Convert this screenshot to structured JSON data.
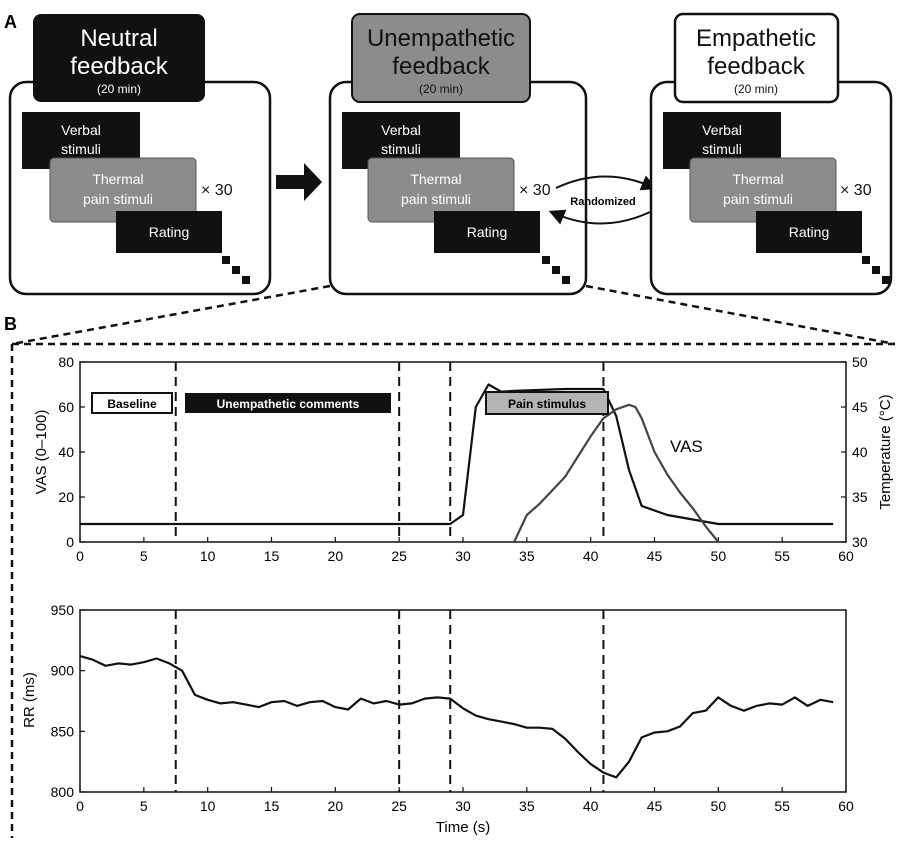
{
  "panel_a": {
    "label": "A",
    "blocks": [
      {
        "title_line1": "Neutral",
        "title_line2": "feedback",
        "duration": "(20 min)",
        "style": "black"
      },
      {
        "title_line1": "Unempathetic",
        "title_line2": "feedback",
        "duration": "(20 min)",
        "style": "gray"
      },
      {
        "title_line1": "Empathetic",
        "title_line2": "feedback",
        "duration": "(20 min)",
        "style": "white"
      }
    ],
    "verbal_line1": "Verbal",
    "verbal_line2": "stimuli",
    "thermal_line1": "Thermal",
    "thermal_line2": "pain stimuli",
    "repeat": "× 30",
    "rating": "Rating",
    "randomized": "Randomized"
  },
  "panel_b": {
    "label": "B",
    "phase_labels": {
      "baseline": "Baseline",
      "comments": "Unempathetic comments",
      "pain": "Pain stimulus"
    },
    "vas_label": "VAS"
  },
  "colors": {
    "black": "#111111",
    "gray": "#8c8c8c",
    "light_gray": "#b4b4b4",
    "white": "#ffffff"
  },
  "chart_data": [
    {
      "type": "line",
      "ylabel": "VAS (0–100)",
      "y2label": "Temperature (°C)",
      "xlim": [
        0,
        60
      ],
      "ylim": [
        0,
        80
      ],
      "y2lim": [
        30,
        50
      ],
      "xticks": [
        "0",
        "5",
        "10",
        "15",
        "20",
        "25",
        "30",
        "35",
        "40",
        "45",
        "50",
        "55",
        "60"
      ],
      "yticks": [
        "0",
        "20",
        "40",
        "60",
        "80"
      ],
      "y2ticks": [
        "30",
        "35",
        "40",
        "45",
        "50"
      ],
      "vlines": [
        7.5,
        25,
        29,
        41
      ],
      "series": [
        {
          "axis": "right",
          "x": [
            0,
            29,
            30,
            31,
            32,
            33,
            34,
            38,
            41,
            42,
            43,
            44,
            46,
            50,
            55,
            59
          ],
          "y": [
            32,
            32,
            33,
            45,
            47.5,
            46.7,
            46.8,
            47,
            47,
            44,
            38,
            34,
            33,
            32,
            32,
            32
          ]
        },
        {
          "name": "VAS",
          "axis": "left",
          "x": [
            34,
            35,
            36,
            37,
            38,
            39,
            40,
            41,
            42,
            43,
            43.5,
            44,
            45,
            46,
            47,
            48,
            49,
            50
          ],
          "y": [
            0,
            12,
            17,
            23,
            29,
            38,
            47,
            55,
            59,
            61,
            60,
            55,
            40,
            30,
            22,
            15,
            7,
            0
          ]
        }
      ]
    },
    {
      "type": "line",
      "xlabel": "Time (s)",
      "ylabel": "RR (ms)",
      "xlim": [
        0,
        60
      ],
      "ylim": [
        800,
        950
      ],
      "xticks": [
        "0",
        "5",
        "10",
        "15",
        "20",
        "25",
        "30",
        "35",
        "40",
        "45",
        "50",
        "55",
        "60"
      ],
      "yticks": [
        "800",
        "850",
        "900",
        "950"
      ],
      "vlines": [
        7.5,
        25,
        29,
        41
      ],
      "series": [
        {
          "x": [
            0,
            1,
            2,
            3,
            4,
            5,
            6,
            7,
            8,
            9,
            10,
            11,
            12,
            13,
            14,
            15,
            16,
            17,
            18,
            19,
            20,
            21,
            22,
            23,
            24,
            25,
            26,
            27,
            28,
            29,
            30,
            31,
            32,
            33,
            34,
            35,
            36,
            37,
            38,
            39,
            40,
            41,
            42,
            43,
            44,
            45,
            46,
            47,
            48,
            49,
            50,
            51,
            52,
            53,
            54,
            55,
            56,
            57,
            58,
            59
          ],
          "y": [
            912,
            909,
            904,
            906,
            905,
            907,
            910,
            906,
            900,
            880,
            876,
            873,
            874,
            872,
            870,
            874,
            875,
            871,
            874,
            875,
            870,
            868,
            877,
            873,
            875,
            872,
            873,
            877,
            878,
            877,
            869,
            863,
            860,
            858,
            856,
            853,
            853,
            852,
            844,
            833,
            823,
            816,
            812,
            825,
            845,
            849,
            850,
            854,
            865,
            867,
            878,
            871,
            867,
            871,
            873,
            872,
            878,
            871,
            876,
            874
          ]
        }
      ]
    }
  ]
}
